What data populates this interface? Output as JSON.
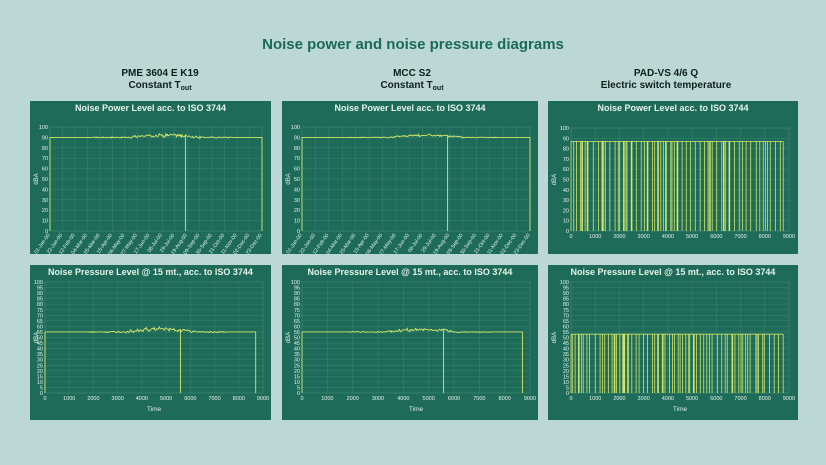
{
  "title": "Noise power and noise pressure diagrams",
  "columns": [
    {
      "name": "PME 3604 E K19",
      "sub_main": "Constant T",
      "sub_index": "out"
    },
    {
      "name": "MCC S2",
      "sub_main": "Constant T",
      "sub_index": "out"
    },
    {
      "name": "PAD-VS 4/6 Q",
      "sub_main": "Electric switch temperature",
      "sub_index": ""
    }
  ],
  "colors": {
    "background": "#bcd8d4",
    "panel": "#1e6b59",
    "series": "#d4e66a",
    "grid": "#3b8470",
    "text": "#e4f3e8"
  },
  "chart_data": [
    {
      "type": "line",
      "title": "Noise Power Level acc. to ISO 3744",
      "ylabel": "dBA",
      "xlabel": "",
      "ylim": [
        0,
        100
      ],
      "yticks": [
        0,
        10,
        20,
        30,
        40,
        50,
        60,
        70,
        80,
        90,
        100
      ],
      "x_kind": "dates",
      "xlim": [
        0,
        8760
      ],
      "xtick_labels": [
        "01-Jan-00",
        "22-Jan-00",
        "12-Feb-00",
        "04-Mar-00",
        "25-Mar-00",
        "15-Apr-00",
        "06-May-00",
        "27-May-00",
        "17-Jun-00",
        "08-Jul-00",
        "29-Jul-00",
        "19-Aug-00",
        "09-Sep-00",
        "30-Sep-00",
        "21-Oct-00",
        "11-Nov-00",
        "02-Dec-00",
        "23-Dec-00"
      ],
      "pattern": "steady",
      "base": 90,
      "noise": 1.2,
      "bump_amp": 2.5,
      "drop_at": 5600,
      "legend": "none",
      "grid": true
    },
    {
      "type": "line",
      "title": "Noise Power Level acc. to ISO 3744",
      "ylabel": "dBA",
      "xlabel": "",
      "ylim": [
        0,
        100
      ],
      "yticks": [
        0,
        10,
        20,
        30,
        40,
        50,
        60,
        70,
        80,
        90,
        100
      ],
      "x_kind": "dates",
      "xlim": [
        0,
        8760
      ],
      "xtick_labels": [
        "01-Jan-00",
        "22-Jan-00",
        "12-Feb-00",
        "04-Mar-00",
        "25-Mar-00",
        "15-Apr-00",
        "06-May-00",
        "27-May-00",
        "17-Jun-00",
        "08-Jul-00",
        "29-Jul-00",
        "19-Aug-00",
        "09-Sep-00",
        "30-Sep-00",
        "21-Oct-00",
        "11-Nov-00",
        "02-Dec-00",
        "23-Dec-00"
      ],
      "pattern": "steady",
      "base": 90,
      "noise": 0.8,
      "bump_amp": 2.5,
      "drop_at": 5600,
      "legend": "none",
      "grid": true
    },
    {
      "type": "line",
      "title": "Noise Power Level acc. to ISO 3744",
      "ylabel": "dBA",
      "xlabel": "",
      "ylim": [
        0,
        100
      ],
      "yticks": [
        0,
        10,
        20,
        30,
        40,
        50,
        60,
        70,
        80,
        90,
        100
      ],
      "x_kind": "numeric",
      "xlim": [
        0,
        9000
      ],
      "xticks": [
        0,
        1000,
        2000,
        3000,
        4000,
        5000,
        6000,
        7000,
        8000,
        9000
      ],
      "pattern": "switching",
      "base": 87,
      "legend": "none",
      "grid": true
    },
    {
      "type": "line",
      "title": "Noise Pressure Level @ 15 mt., acc. to ISO 3744",
      "ylabel": "dBA",
      "xlabel": "Time",
      "ylim": [
        0,
        100
      ],
      "yticks": [
        0,
        5,
        10,
        15,
        20,
        25,
        30,
        35,
        40,
        45,
        50,
        55,
        60,
        65,
        70,
        75,
        80,
        85,
        90,
        95,
        100
      ],
      "x_kind": "numeric",
      "xlim": [
        0,
        9000
      ],
      "xticks": [
        0,
        1000,
        2000,
        3000,
        4000,
        5000,
        6000,
        7000,
        8000,
        9000
      ],
      "pattern": "steady",
      "base": 55,
      "noise": 1.2,
      "bump_amp": 3,
      "drop_at": 5600,
      "legend": "none",
      "grid": true
    },
    {
      "type": "line",
      "title": "Noise Pressure Level @ 15 mt., acc. to ISO 3744",
      "ylabel": "dBA",
      "xlabel": "Time",
      "ylim": [
        0,
        100
      ],
      "yticks": [
        0,
        5,
        10,
        15,
        20,
        25,
        30,
        35,
        40,
        45,
        50,
        55,
        60,
        65,
        70,
        75,
        80,
        85,
        90,
        95,
        100
      ],
      "x_kind": "numeric",
      "xlim": [
        0,
        9000
      ],
      "xticks": [
        0,
        1000,
        2000,
        3000,
        4000,
        5000,
        6000,
        7000,
        8000,
        9000
      ],
      "pattern": "steady",
      "base": 55,
      "noise": 0.8,
      "bump_amp": 2.5,
      "drop_at": 5600,
      "legend": "none",
      "grid": true
    },
    {
      "type": "line",
      "title": "Noise Pressure Level @ 15 mt., acc. to ISO 3744",
      "ylabel": "dBA",
      "xlabel": "Time",
      "ylim": [
        0,
        100
      ],
      "yticks": [
        0,
        5,
        10,
        15,
        20,
        25,
        30,
        35,
        40,
        45,
        50,
        55,
        60,
        65,
        70,
        75,
        80,
        85,
        90,
        95,
        100
      ],
      "x_kind": "numeric",
      "xlim": [
        0,
        9000
      ],
      "xticks": [
        0,
        1000,
        2000,
        3000,
        4000,
        5000,
        6000,
        7000,
        8000,
        9000
      ],
      "pattern": "switching",
      "base": 53,
      "legend": "none",
      "grid": true
    }
  ]
}
